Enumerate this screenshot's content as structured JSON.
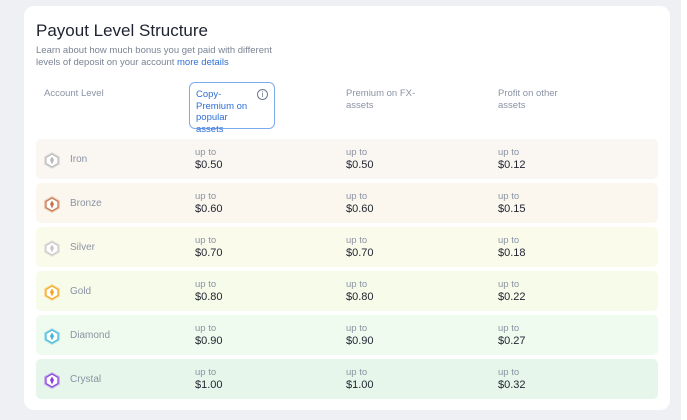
{
  "title": "Payout Level Structure",
  "description": "Learn about how much bonus you get paid with different levels of deposit on your account",
  "more_details_link": "more details",
  "columns": {
    "account_level": "Account Level",
    "copy_premium": "Copy-Premium on popular assets",
    "premium_fx": "Premium on FX-assets",
    "profit_other": "Profit on other assets"
  },
  "info_icon": "info-icon",
  "upto_label": "up to",
  "levels": [
    {
      "name": "Iron",
      "icon": "iron-gem-icon",
      "copy_premium": "$0.50",
      "premium_fx": "$0.50",
      "profit_other": "$0.12",
      "row_color": "#faf6f1",
      "icon_color": "#b9b9b9"
    },
    {
      "name": "Bronze",
      "icon": "bronze-gem-icon",
      "copy_premium": "$0.60",
      "premium_fx": "$0.60",
      "profit_other": "$0.15",
      "row_color": "#fbf7ee",
      "icon_color": "#c9754b"
    },
    {
      "name": "Silver",
      "icon": "silver-gem-icon",
      "copy_premium": "$0.70",
      "premium_fx": "$0.70",
      "profit_other": "$0.18",
      "row_color": "#fbfbec",
      "icon_color": "#c7c7c7"
    },
    {
      "name": "Gold",
      "icon": "gold-gem-icon",
      "copy_premium": "$0.80",
      "premium_fx": "$0.80",
      "profit_other": "$0.22",
      "row_color": "#f7fbe9",
      "icon_color": "#f3a51d"
    },
    {
      "name": "Diamond",
      "icon": "diamond-gem-icon",
      "copy_premium": "$0.90",
      "premium_fx": "$0.90",
      "profit_other": "$0.27",
      "row_color": "#eefbee",
      "icon_color": "#3fb7d9"
    },
    {
      "name": "Crystal",
      "icon": "crystal-gem-icon",
      "copy_premium": "$1.00",
      "premium_fx": "$1.00",
      "profit_other": "$0.32",
      "row_color": "#e6f6ea",
      "icon_color": "#8a3fe0"
    }
  ]
}
